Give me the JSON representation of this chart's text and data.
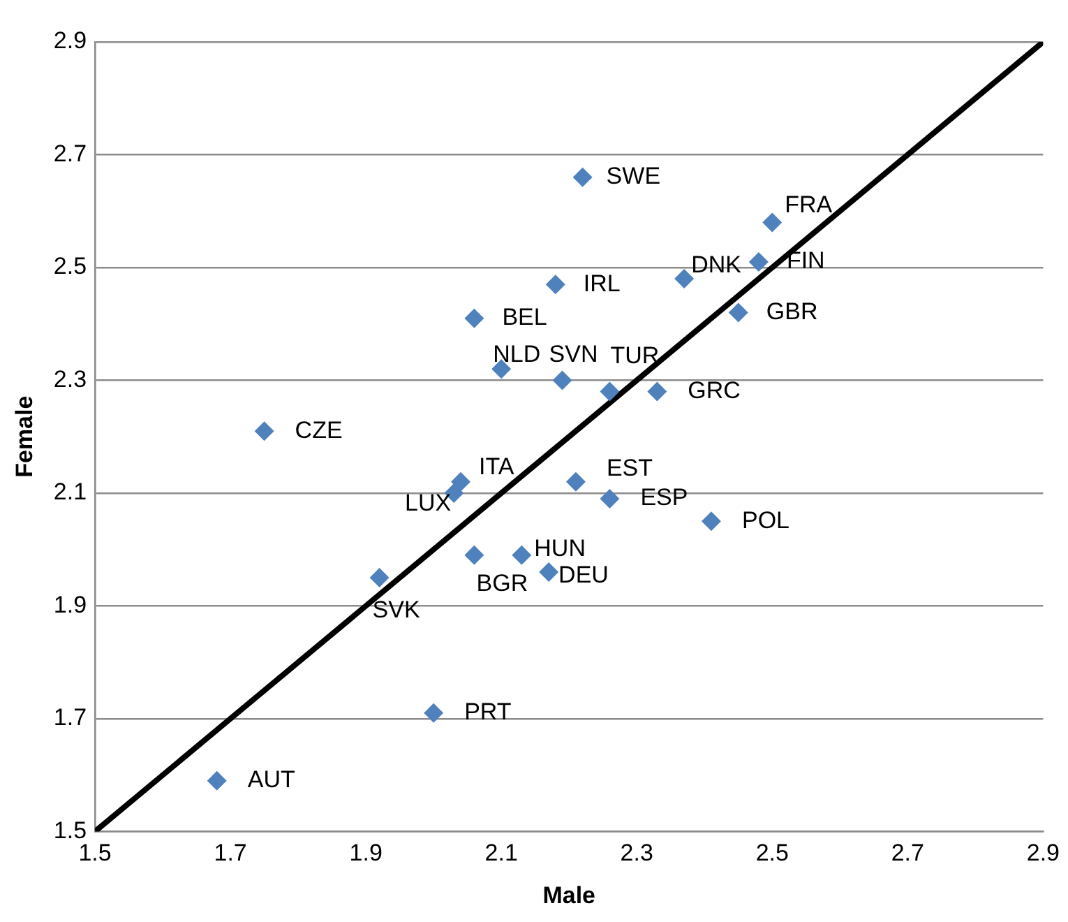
{
  "chart_data": {
    "type": "scatter",
    "xlabel": "Male",
    "ylabel": "Female",
    "xlim": [
      1.5,
      2.9
    ],
    "xticks": [
      1.5,
      1.7,
      1.9,
      2.1,
      2.3,
      2.5,
      2.7,
      2.9
    ],
    "ylim": [
      1.5,
      2.9
    ],
    "yticks": [
      1.5,
      1.7,
      1.9,
      2.1,
      2.3,
      2.5,
      2.7,
      2.9
    ],
    "grid": "y",
    "marker": "diamond",
    "series": [
      {
        "color": "#4f81bd",
        "x": [
          2.22,
          2.5,
          2.48,
          2.37,
          2.45,
          2.18,
          2.06,
          2.1,
          2.19,
          2.26,
          2.33,
          1.75,
          2.04,
          2.03,
          2.21,
          2.26,
          2.41,
          2.06,
          2.13,
          2.17,
          1.92,
          2.0,
          1.68
        ],
        "values": [
          2.66,
          2.58,
          2.51,
          2.48,
          2.42,
          2.47,
          2.41,
          2.32,
          2.3,
          2.28,
          2.28,
          2.21,
          2.12,
          2.1,
          2.12,
          2.09,
          2.05,
          1.99,
          1.99,
          1.96,
          1.95,
          1.71,
          1.59
        ]
      },
      {
        "type": "line",
        "marker": "none",
        "color": "#000000",
        "x": [
          1.5,
          2.9
        ],
        "values": [
          1.5,
          2.9
        ]
      }
    ],
    "annotations": [
      {
        "text": "SWE",
        "x": 2.22,
        "y": 2.66
      },
      {
        "text": "FRA",
        "x": 2.5,
        "y": 2.58
      },
      {
        "text": "FIN",
        "x": 2.48,
        "y": 2.51
      },
      {
        "text": "DNK",
        "x": 2.37,
        "y": 2.48
      },
      {
        "text": "GBR",
        "x": 2.45,
        "y": 2.42
      },
      {
        "text": "IRL",
        "x": 2.18,
        "y": 2.47
      },
      {
        "text": "BEL",
        "x": 2.06,
        "y": 2.41
      },
      {
        "text": "NLD",
        "x": 2.1,
        "y": 2.32
      },
      {
        "text": "SVN",
        "x": 2.19,
        "y": 2.3
      },
      {
        "text": "TUR",
        "x": 2.26,
        "y": 2.28
      },
      {
        "text": "GRC",
        "x": 2.33,
        "y": 2.28
      },
      {
        "text": "CZE",
        "x": 1.75,
        "y": 2.21
      },
      {
        "text": "ITA",
        "x": 2.04,
        "y": 2.12
      },
      {
        "text": "LUX",
        "x": 2.03,
        "y": 2.1
      },
      {
        "text": "EST",
        "x": 2.21,
        "y": 2.12
      },
      {
        "text": "ESP",
        "x": 2.26,
        "y": 2.09
      },
      {
        "text": "POL",
        "x": 2.41,
        "y": 2.05
      },
      {
        "text": "BGR",
        "x": 2.06,
        "y": 1.99
      },
      {
        "text": "HUN",
        "x": 2.13,
        "y": 1.99
      },
      {
        "text": "DEU",
        "x": 2.17,
        "y": 1.96
      },
      {
        "text": "SVK",
        "x": 1.92,
        "y": 1.95
      },
      {
        "text": "PRT",
        "x": 2.0,
        "y": 1.71
      },
      {
        "text": "AUT",
        "x": 1.68,
        "y": 1.59
      }
    ]
  }
}
